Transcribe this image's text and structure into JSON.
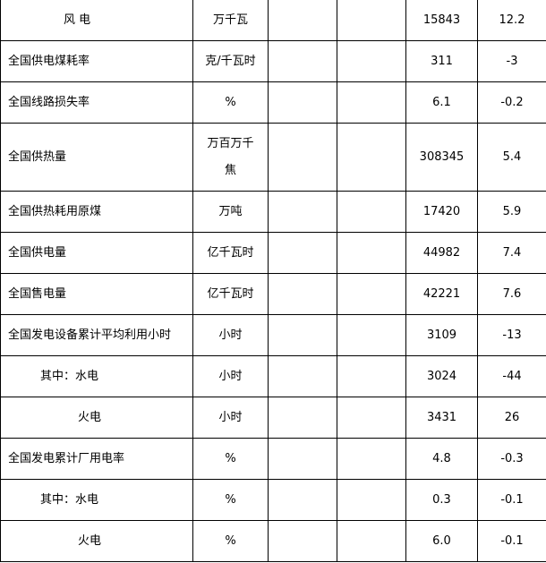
{
  "rows": [
    {
      "name": "风 电",
      "unit": "万千瓦",
      "col3": "",
      "col4": "",
      "value": "15843",
      "change": "12.2",
      "indent": "wind"
    },
    {
      "name": "全国供电煤耗率",
      "unit": "克/千瓦时",
      "col3": "",
      "col4": "",
      "value": "311",
      "change": "-3",
      "indent": ""
    },
    {
      "name": "全国线路损失率",
      "unit": "%",
      "col3": "",
      "col4": "",
      "value": "6.1",
      "change": "-0.2",
      "indent": ""
    },
    {
      "name": "全国供热量",
      "unit": "万百万千焦",
      "col3": "",
      "col4": "",
      "value": "308345",
      "change": "5.4",
      "indent": "",
      "tall": true
    },
    {
      "name": "全国供热耗用原煤",
      "unit": "万吨",
      "col3": "",
      "col4": "",
      "value": "17420",
      "change": "5.9",
      "indent": ""
    },
    {
      "name": "全国供电量",
      "unit": "亿千瓦时",
      "col3": "",
      "col4": "",
      "value": "44982",
      "change": "7.4",
      "indent": ""
    },
    {
      "name": "全国售电量",
      "unit": "亿千瓦时",
      "col3": "",
      "col4": "",
      "value": "42221",
      "change": "7.6",
      "indent": ""
    },
    {
      "name": "全国发电设备累计平均利用小时",
      "unit": "小时",
      "col3": "",
      "col4": "",
      "value": "3109",
      "change": "-13",
      "indent": ""
    },
    {
      "name": "其中：水电",
      "unit": "小时",
      "col3": "",
      "col4": "",
      "value": "3024",
      "change": "-44",
      "indent": "ind1"
    },
    {
      "name": "火电",
      "unit": "小时",
      "col3": "",
      "col4": "",
      "value": "3431",
      "change": "26",
      "indent": "ind2"
    },
    {
      "name": "全国发电累计厂用电率",
      "unit": "%",
      "col3": "",
      "col4": "",
      "value": "4.8",
      "change": "-0.3",
      "indent": ""
    },
    {
      "name": "其中：水电",
      "unit": "%",
      "col3": "",
      "col4": "",
      "value": "0.3",
      "change": "-0.1",
      "indent": "ind1"
    },
    {
      "name": "火电",
      "unit": "%",
      "col3": "",
      "col4": "",
      "value": "6.0",
      "change": "-0.1",
      "indent": "ind2"
    }
  ]
}
